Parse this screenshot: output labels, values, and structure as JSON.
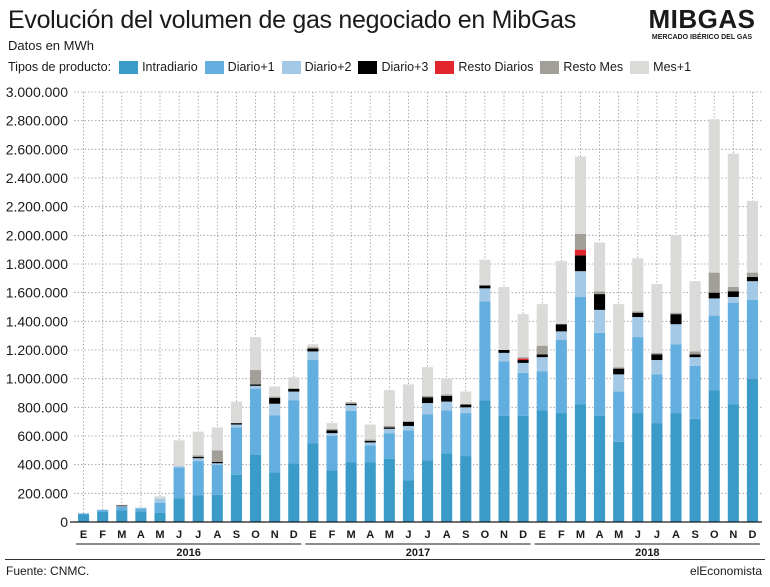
{
  "header": {
    "title": "Evolución del volumen de gas negociado en MibGas",
    "subtitle": "Datos en MWh"
  },
  "logo": {
    "word": "MIBGAS",
    "tagline": "MERCADO IBÉRICO DEL GAS"
  },
  "legend": {
    "label": "Tipos de producto:"
  },
  "footer": {
    "source": "Fuente: CNMC.",
    "brand": "elEconomista"
  },
  "chart_data": {
    "type": "bar",
    "stacked": true,
    "title": "Evolución del volumen de gas negociado en MibGas",
    "subtitle": "Datos en MWh",
    "ylim": [
      0,
      3000000
    ],
    "yticks": [
      0,
      200000,
      400000,
      600000,
      800000,
      1000000,
      1200000,
      1400000,
      1600000,
      1800000,
      2000000,
      2200000,
      2400000,
      2600000,
      2800000,
      3000000
    ],
    "ytick_labels": [
      "0",
      "200.000",
      "400.000",
      "600.000",
      "800.000",
      "1.000.000",
      "1.200.000",
      "1.400.000",
      "1.600.000",
      "1.800.000",
      "2.000.000",
      "2.200.000",
      "2.400.000",
      "2.600.000",
      "2.800.000",
      "3.000.000"
    ],
    "grid": true,
    "categories": [
      "E",
      "F",
      "M",
      "A",
      "M",
      "J",
      "J",
      "A",
      "S",
      "O",
      "N",
      "D",
      "E",
      "F",
      "M",
      "A",
      "M",
      "J",
      "J",
      "A",
      "S",
      "O",
      "N",
      "D",
      "E",
      "F",
      "M",
      "A",
      "M",
      "J",
      "J",
      "A",
      "S",
      "O",
      "N",
      "D"
    ],
    "year_groups": [
      {
        "label": "2016",
        "start": 0,
        "end": 11
      },
      {
        "label": "2017",
        "start": 12,
        "end": 23
      },
      {
        "label": "2018",
        "start": 24,
        "end": 35
      }
    ],
    "series": [
      {
        "name": "Intradiario",
        "color": "#3a9ac8",
        "values": [
          55000,
          70000,
          80000,
          75000,
          65000,
          165000,
          185000,
          190000,
          330000,
          470000,
          345000,
          410000,
          550000,
          360000,
          415000,
          415000,
          440000,
          290000,
          430000,
          480000,
          460000,
          850000,
          740000,
          740000,
          780000,
          760000,
          820000,
          740000,
          560000,
          760000,
          690000,
          760000,
          720000,
          920000,
          820000,
          1000000
        ]
      },
      {
        "name": "Diario+1",
        "color": "#62afdf",
        "values": [
          5000,
          15000,
          25000,
          20000,
          70000,
          215000,
          240000,
          210000,
          330000,
          460000,
          400000,
          440000,
          580000,
          240000,
          360000,
          120000,
          180000,
          350000,
          320000,
          300000,
          300000,
          690000,
          380000,
          300000,
          270000,
          510000,
          750000,
          580000,
          350000,
          530000,
          340000,
          480000,
          370000,
          520000,
          710000,
          550000
        ]
      },
      {
        "name": "Diario+2",
        "color": "#a3c9e6",
        "values": [
          0,
          0,
          5000,
          5000,
          30000,
          10000,
          20000,
          10000,
          20000,
          20000,
          80000,
          60000,
          60000,
          20000,
          40000,
          20000,
          30000,
          30000,
          80000,
          60000,
          40000,
          90000,
          60000,
          70000,
          100000,
          60000,
          180000,
          160000,
          120000,
          140000,
          100000,
          140000,
          60000,
          120000,
          40000,
          130000
        ]
      },
      {
        "name": "Diario+3",
        "color": "#000000",
        "values": [
          0,
          0,
          5000,
          0,
          0,
          0,
          10000,
          10000,
          10000,
          10000,
          40000,
          20000,
          20000,
          20000,
          10000,
          10000,
          10000,
          30000,
          40000,
          40000,
          20000,
          20000,
          20000,
          20000,
          20000,
          50000,
          110000,
          110000,
          40000,
          30000,
          40000,
          70000,
          20000,
          40000,
          40000,
          30000
        ]
      },
      {
        "name": "Resto Diarios",
        "color": "#e1262d",
        "values": [
          0,
          0,
          0,
          0,
          0,
          0,
          0,
          0,
          0,
          0,
          0,
          0,
          0,
          0,
          0,
          0,
          0,
          0,
          0,
          0,
          0,
          0,
          0,
          10000,
          0,
          0,
          40000,
          0,
          0,
          0,
          0,
          0,
          0,
          0,
          0,
          0
        ]
      },
      {
        "name": "Resto Mes",
        "color": "#a29e98",
        "values": [
          0,
          0,
          0,
          0,
          0,
          0,
          10000,
          80000,
          0,
          100000,
          10000,
          0,
          10000,
          10000,
          10000,
          10000,
          10000,
          0,
          10000,
          10000,
          0,
          0,
          0,
          10000,
          60000,
          0,
          110000,
          20000,
          10000,
          10000,
          10000,
          10000,
          20000,
          140000,
          30000,
          30000
        ]
      },
      {
        "name": "Mes+1",
        "color": "#dadad8",
        "values": [
          0,
          0,
          5000,
          0,
          15000,
          180000,
          165000,
          160000,
          150000,
          230000,
          70000,
          80000,
          20000,
          40000,
          0,
          105000,
          250000,
          260000,
          200000,
          110000,
          90000,
          180000,
          440000,
          300000,
          290000,
          440000,
          540000,
          340000,
          440000,
          370000,
          480000,
          540000,
          490000,
          1070000,
          930000,
          500000
        ]
      }
    ]
  }
}
